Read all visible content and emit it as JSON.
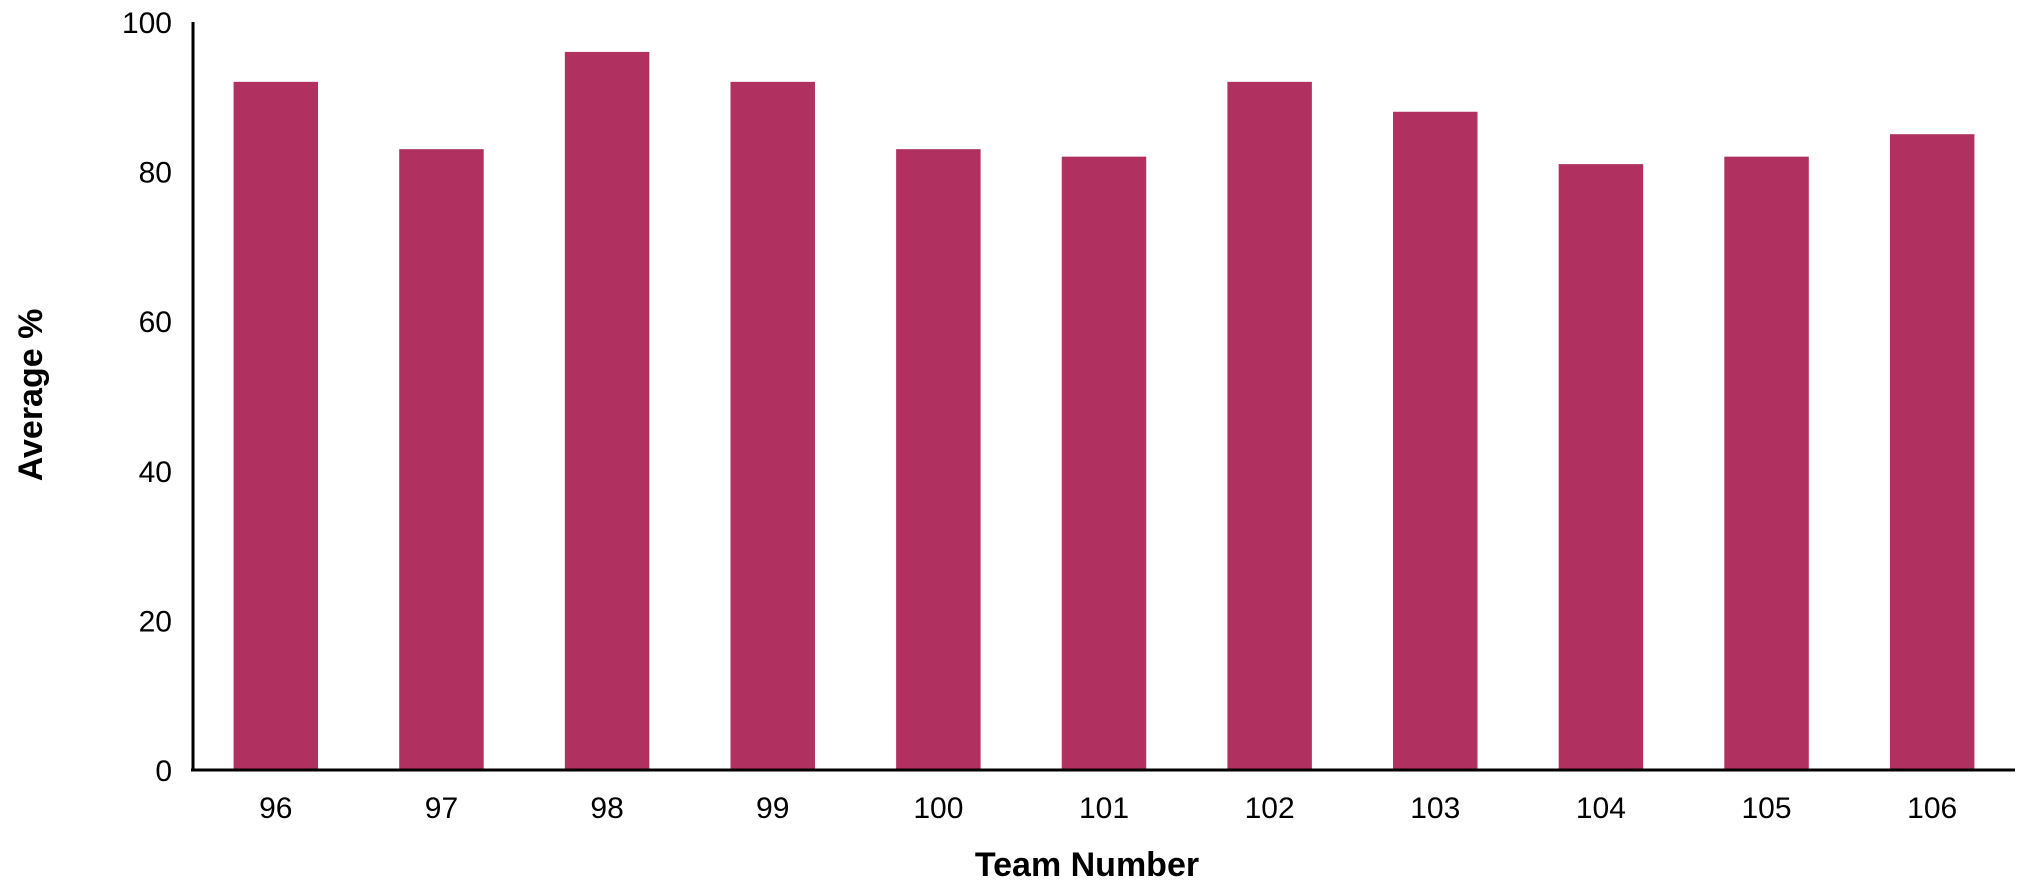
{
  "chart_data": {
    "type": "bar",
    "categories": [
      "96",
      "97",
      "98",
      "99",
      "100",
      "101",
      "102",
      "103",
      "104",
      "105",
      "106"
    ],
    "values": [
      92,
      83,
      96,
      92,
      83,
      82,
      92,
      88,
      81,
      82,
      85
    ],
    "title": "",
    "xlabel": "Team Number",
    "ylabel": "Average %",
    "ylim": [
      0,
      100
    ],
    "yticks": [
      "0",
      "20",
      "40",
      "60",
      "80",
      "100"
    ],
    "grid": false,
    "legend": "none",
    "bar_color": "#b03060"
  }
}
